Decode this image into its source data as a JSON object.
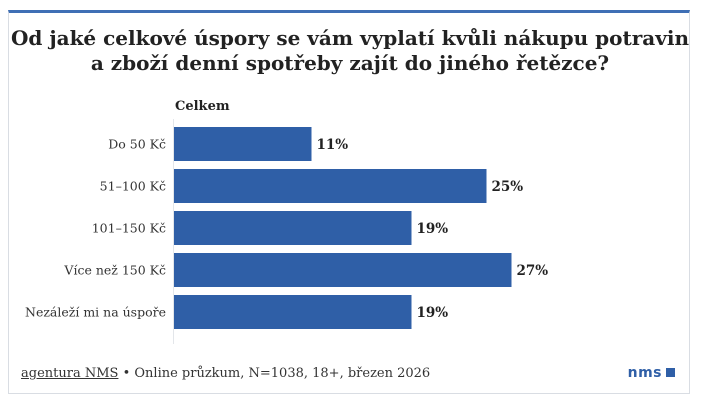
{
  "chart_data": {
    "type": "bar",
    "orientation": "horizontal",
    "title_lines": [
      "Od jaké celkové úspory se vám vyplatí kvůli nákupu potravin",
      "a zboží denní spotřeby zajít do jiného řetězce?"
    ],
    "series_name": "Celkem",
    "categories": [
      "Do 50 Kč",
      "51–100 Kč",
      "101–150 Kč",
      "Více než 150 Kč",
      "Nezáleží mi na úspoře"
    ],
    "values": [
      11,
      25,
      19,
      27,
      19
    ],
    "value_labels": [
      "11%",
      "25%",
      "19%",
      "27%",
      "19%"
    ],
    "unit": "%",
    "xlim": [
      0,
      50
    ],
    "grid": false,
    "bar_color": "#2f5fa7"
  },
  "footer": {
    "source": "agentura NMS",
    "details": "• Online průzkum, N=1038, 18+, březen 2026"
  },
  "logo": {
    "text": "nms"
  }
}
